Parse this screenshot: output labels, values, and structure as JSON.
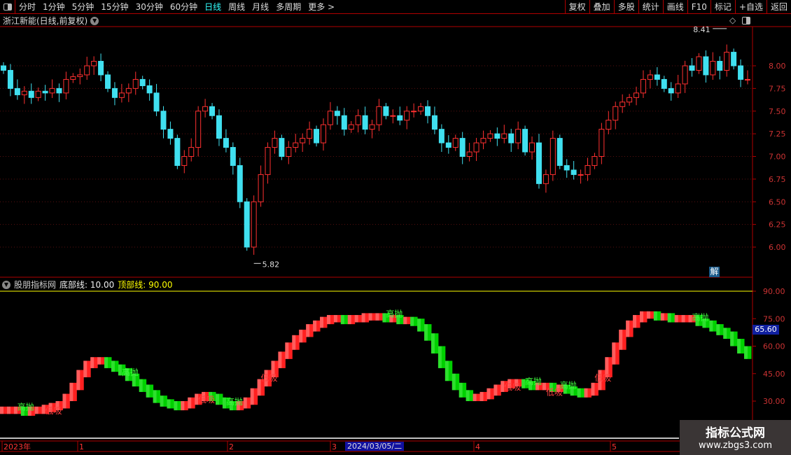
{
  "toolbar": {
    "periods": [
      "分时",
      "1分钟",
      "5分钟",
      "15分钟",
      "30分钟",
      "60分钟",
      "日线",
      "周线",
      "月线",
      "多周期",
      "更多 >"
    ],
    "active": "日线",
    "right_buttons": [
      "复权",
      "叠加",
      "多股",
      "统计",
      "画线",
      "F10",
      "标记",
      "+自选",
      "返回"
    ]
  },
  "stock_title": "浙江新能(日线,前复权)",
  "price_axis": [
    "8.00",
    "7.75",
    "7.50",
    "7.25",
    "7.00",
    "6.75",
    "6.50",
    "6.25",
    "6.00"
  ],
  "high_label": "8.41",
  "low_label": "5.82",
  "badge": "解",
  "indicator": {
    "name": "股朋指标网",
    "bottom_label": "底部线:",
    "bottom_value": "10.00",
    "top_label": "顶部线:",
    "top_value": "90.00",
    "axis": [
      "90.00",
      "75.00",
      "60.00",
      "45.00",
      "30.00"
    ],
    "current": "65.60",
    "colors": {
      "up": "#ff2020",
      "down": "#00d000",
      "top_line": "#ffff00"
    }
  },
  "time_axis": {
    "labels": [
      "2023年",
      "1",
      "2",
      "3",
      "4",
      "5"
    ],
    "cursor_date": "2024/03/05/二"
  },
  "watermark": {
    "line1": "指标公式网",
    "line2": "www.zbgs3.com"
  },
  "chart_data": {
    "type": "candlestick",
    "price_range": [
      5.8,
      8.4
    ],
    "close": [
      7.95,
      7.75,
      7.68,
      7.72,
      7.65,
      7.72,
      7.7,
      7.75,
      7.7,
      7.85,
      7.88,
      7.9,
      8.0,
      8.05,
      7.9,
      7.75,
      7.65,
      7.7,
      7.75,
      7.85,
      7.78,
      7.7,
      7.5,
      7.3,
      7.2,
      6.9,
      7.0,
      7.1,
      7.5,
      7.55,
      7.45,
      7.2,
      7.1,
      6.9,
      6.5,
      6.0,
      6.5,
      6.8,
      7.1,
      7.2,
      7.0,
      7.1,
      7.15,
      7.2,
      7.3,
      7.15,
      7.35,
      7.5,
      7.45,
      7.3,
      7.35,
      7.45,
      7.3,
      7.35,
      7.55,
      7.45,
      7.45,
      7.4,
      7.5,
      7.5,
      7.55,
      7.45,
      7.3,
      7.15,
      7.1,
      7.2,
      7.0,
      7.05,
      7.15,
      7.2,
      7.25,
      7.2,
      7.25,
      7.15,
      7.3,
      7.05,
      7.15,
      6.7,
      6.8,
      7.2,
      6.9,
      6.85,
      6.8,
      6.8,
      6.9,
      7.0,
      7.3,
      7.4,
      7.55,
      7.6,
      7.65,
      7.7,
      7.85,
      7.9,
      7.85,
      7.75,
      7.7,
      7.8,
      8.0,
      7.95,
      8.1,
      7.9,
      8.05,
      7.95,
      8.15,
      8.0,
      7.85,
      7.85
    ],
    "indicator_values": [
      25,
      25,
      25,
      24,
      25,
      25,
      26,
      27,
      28,
      32,
      38,
      45,
      50,
      52,
      52,
      50,
      48,
      46,
      43,
      40,
      37,
      34,
      31,
      29,
      28,
      27,
      28,
      30,
      32,
      33,
      32,
      30,
      28,
      27,
      28,
      30,
      35,
      40,
      45,
      50,
      55,
      60,
      64,
      67,
      70,
      72,
      74,
      75,
      75,
      74,
      75,
      75,
      76,
      76,
      76,
      75,
      75,
      74,
      74,
      73,
      70,
      65,
      58,
      50,
      43,
      38,
      34,
      32,
      32,
      33,
      35,
      37,
      39,
      40,
      40,
      39,
      38,
      38,
      38,
      37,
      37,
      36,
      35,
      34,
      35,
      38,
      45,
      52,
      60,
      67,
      72,
      75,
      77,
      77,
      76,
      76,
      75,
      75,
      75,
      75,
      73,
      72,
      70,
      68,
      66,
      62,
      58,
      55
    ],
    "indicator_range": [
      20,
      95
    ],
    "signals": [
      {
        "i": 3,
        "label": "高抛"
      },
      {
        "i": 7,
        "label": "低吸"
      },
      {
        "i": 18,
        "label": "高抛"
      },
      {
        "i": 29,
        "label": "低吸"
      },
      {
        "i": 33,
        "label": "高抛"
      },
      {
        "i": 38,
        "label": "低吸"
      },
      {
        "i": 56,
        "label": "高抛"
      },
      {
        "i": 73,
        "label": "低吸"
      },
      {
        "i": 76,
        "label": "高抛"
      },
      {
        "i": 79,
        "label": "低吸"
      },
      {
        "i": 81,
        "label": "高抛"
      },
      {
        "i": 86,
        "label": "低吸"
      },
      {
        "i": 100,
        "label": "高抛"
      }
    ]
  }
}
